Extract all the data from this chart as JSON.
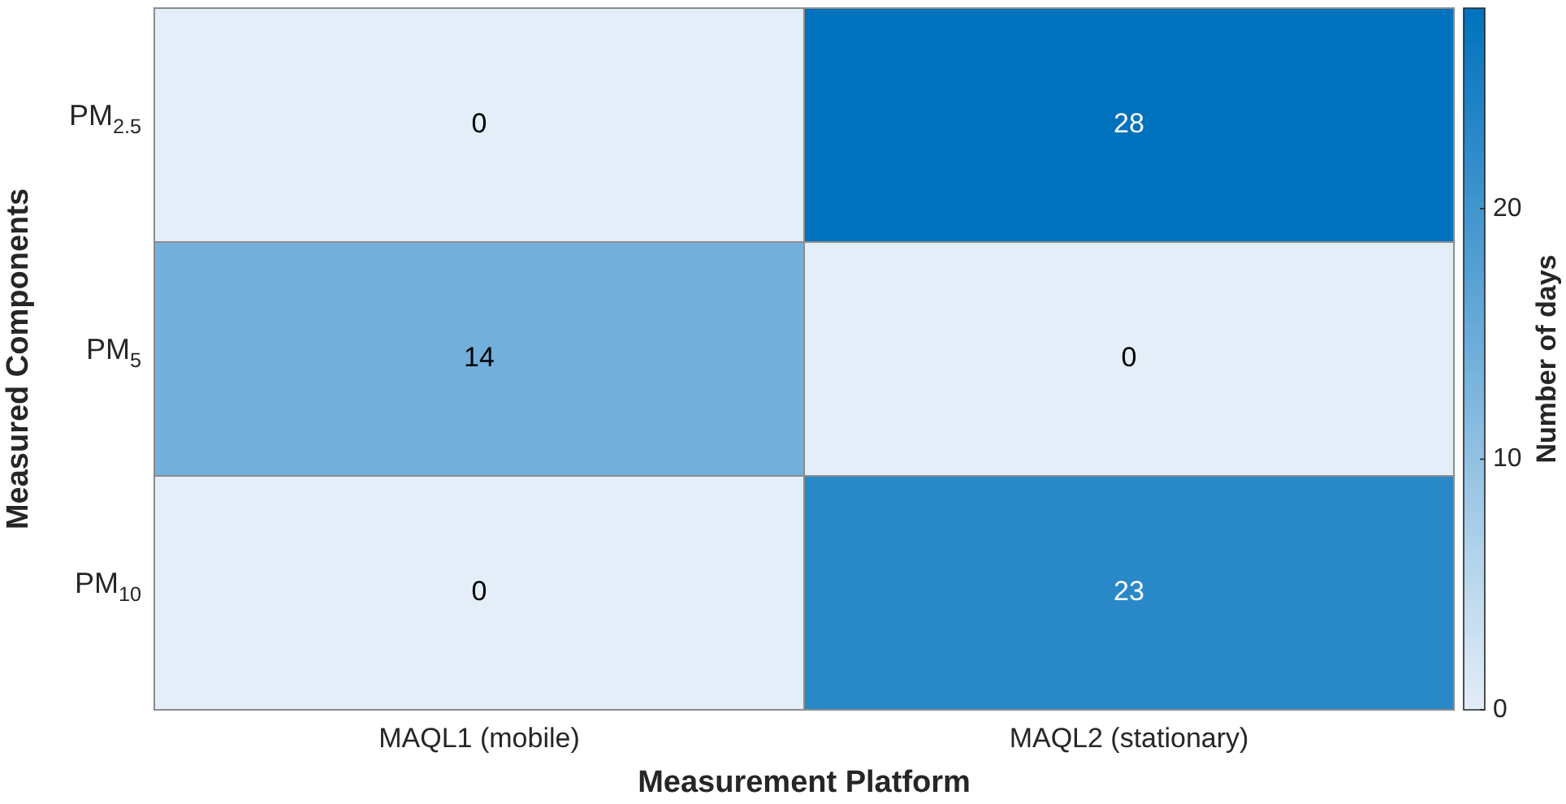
{
  "chart_data": {
    "type": "heatmap",
    "xlabel": "Measurement Platform",
    "ylabel": "Measured Components",
    "clabel": "Number of days",
    "categories": [
      "MAQL1 (mobile)",
      "MAQL2 (stationary)"
    ],
    "y_categories": [
      "PM$_{2.5}$",
      "PM$_{5}$",
      "PM$_{10}$"
    ],
    "cells": [
      [
        0,
        28
      ],
      [
        14,
        0
      ],
      [
        0,
        23
      ]
    ],
    "clim": [
      0,
      28
    ],
    "cticks": [
      0,
      10,
      20
    ],
    "data_labels": true
  }
}
